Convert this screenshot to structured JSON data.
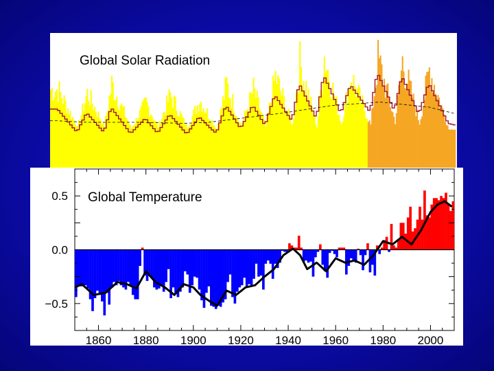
{
  "colors": {
    "background": "#0b0b9e",
    "solar_fill": "#ffff00",
    "solar_recent": "#f5a623",
    "solar_line": "#a0152a",
    "temp_negative": "#0000ff",
    "temp_positive": "#ff0000",
    "temp_smooth": "#000000"
  },
  "chart_data": [
    {
      "type": "area",
      "title": "Global Solar Radiation",
      "xlim": [
        1845,
        2011
      ],
      "series": [
        {
          "name": "sunspot cycle peaks (relative)",
          "x": [
            1848,
            1860,
            1870,
            1884,
            1894,
            1906,
            1917,
            1928,
            1937,
            1947,
            1957,
            1968,
            1979,
            1989,
            2000
          ],
          "values": [
            0.55,
            0.5,
            0.62,
            0.38,
            0.48,
            0.42,
            0.62,
            0.55,
            0.72,
            0.9,
            1.0,
            0.72,
            0.95,
            0.92,
            0.82
          ]
        },
        {
          "name": "cycle minima (relative)",
          "x": [
            1856,
            1867,
            1878,
            1889,
            1901,
            1913,
            1923,
            1933,
            1944,
            1954,
            1964,
            1976,
            1986,
            1996,
            2008
          ],
          "values": [
            0.05,
            0.06,
            0.03,
            0.05,
            0.04,
            0.02,
            0.06,
            0.06,
            0.08,
            0.05,
            0.1,
            0.08,
            0.12,
            0.1,
            0.02
          ]
        },
        {
          "name": "long-term trend (relative)",
          "x": [
            1848,
            1860,
            1880,
            1900,
            1910,
            1920,
            1940,
            1960,
            1980,
            2000,
            2010
          ],
          "values": [
            0.15,
            0.12,
            0.12,
            0.1,
            0.12,
            0.18,
            0.3,
            0.45,
            0.52,
            0.42,
            0.3
          ]
        }
      ]
    },
    {
      "type": "bar",
      "title": "Global Temperature",
      "xlabel": "",
      "ylabel": "",
      "xlim": [
        1850,
        2010
      ],
      "ylim": [
        -0.75,
        0.75
      ],
      "y_ticks": [
        "0.5",
        "0.0",
        "−0.5"
      ],
      "y_tick_values": [
        0.5,
        0.0,
        -0.5
      ],
      "x_ticks": [
        "1860",
        "1880",
        "1900",
        "1920",
        "1940",
        "1960",
        "1980",
        "2000"
      ],
      "x_tick_values": [
        1860,
        1880,
        1900,
        1920,
        1940,
        1960,
        1980,
        2000
      ],
      "smoothed": {
        "x": [
          1850,
          1853,
          1858,
          1863,
          1868,
          1872,
          1876,
          1880,
          1884,
          1888,
          1892,
          1896,
          1900,
          1903,
          1907,
          1910,
          1914,
          1918,
          1922,
          1926,
          1930,
          1934,
          1938,
          1942,
          1945,
          1948,
          1952,
          1956,
          1960,
          1964,
          1968,
          1972,
          1976,
          1980,
          1984,
          1988,
          1992,
          1996,
          2000,
          2003,
          2006,
          2009
        ],
        "values": [
          -0.35,
          -0.32,
          -0.42,
          -0.4,
          -0.3,
          -0.32,
          -0.36,
          -0.2,
          -0.3,
          -0.35,
          -0.42,
          -0.32,
          -0.35,
          -0.42,
          -0.48,
          -0.52,
          -0.38,
          -0.42,
          -0.35,
          -0.33,
          -0.25,
          -0.18,
          -0.05,
          0.01,
          -0.05,
          -0.18,
          -0.12,
          -0.2,
          -0.08,
          -0.12,
          -0.1,
          -0.14,
          -0.05,
          0.08,
          0.05,
          0.12,
          0.05,
          0.18,
          0.35,
          0.42,
          0.45,
          0.4
        ]
      },
      "annual": {
        "x": [
          1850,
          1851,
          1852,
          1853,
          1854,
          1855,
          1856,
          1857,
          1858,
          1859,
          1860,
          1861,
          1862,
          1863,
          1864,
          1865,
          1866,
          1867,
          1868,
          1869,
          1870,
          1871,
          1872,
          1873,
          1874,
          1875,
          1876,
          1877,
          1878,
          1879,
          1880,
          1881,
          1882,
          1883,
          1884,
          1885,
          1886,
          1887,
          1888,
          1889,
          1890,
          1891,
          1892,
          1893,
          1894,
          1895,
          1896,
          1897,
          1898,
          1899,
          1900,
          1901,
          1902,
          1903,
          1904,
          1905,
          1906,
          1907,
          1908,
          1909,
          1910,
          1911,
          1912,
          1913,
          1914,
          1915,
          1916,
          1917,
          1918,
          1919,
          1920,
          1921,
          1922,
          1923,
          1924,
          1925,
          1926,
          1927,
          1928,
          1929,
          1930,
          1931,
          1932,
          1933,
          1934,
          1935,
          1936,
          1937,
          1938,
          1939,
          1940,
          1941,
          1942,
          1943,
          1944,
          1945,
          1946,
          1947,
          1948,
          1949,
          1950,
          1951,
          1952,
          1953,
          1954,
          1955,
          1956,
          1957,
          1958,
          1959,
          1960,
          1961,
          1962,
          1963,
          1964,
          1965,
          1966,
          1967,
          1968,
          1969,
          1970,
          1971,
          1972,
          1973,
          1974,
          1975,
          1976,
          1977,
          1978,
          1979,
          1980,
          1981,
          1982,
          1983,
          1984,
          1985,
          1986,
          1987,
          1988,
          1989,
          1990,
          1991,
          1992,
          1993,
          1994,
          1995,
          1996,
          1997,
          1998,
          1999,
          2000,
          2001,
          2002,
          2003,
          2004,
          2005,
          2006,
          2007,
          2008,
          2009
        ],
        "values": [
          -0.44,
          -0.33,
          -0.34,
          -0.34,
          -0.33,
          -0.36,
          -0.46,
          -0.57,
          -0.45,
          -0.38,
          -0.42,
          -0.48,
          -0.61,
          -0.4,
          -0.51,
          -0.35,
          -0.3,
          -0.33,
          -0.29,
          -0.33,
          -0.35,
          -0.37,
          -0.3,
          -0.34,
          -0.42,
          -0.46,
          -0.46,
          -0.15,
          0.02,
          -0.24,
          -0.29,
          -0.24,
          -0.26,
          -0.35,
          -0.37,
          -0.36,
          -0.33,
          -0.39,
          -0.3,
          -0.18,
          -0.45,
          -0.35,
          -0.41,
          -0.44,
          -0.39,
          -0.35,
          -0.2,
          -0.23,
          -0.4,
          -0.33,
          -0.25,
          -0.26,
          -0.37,
          -0.47,
          -0.54,
          -0.4,
          -0.34,
          -0.52,
          -0.53,
          -0.55,
          -0.52,
          -0.53,
          -0.49,
          -0.46,
          -0.3,
          -0.23,
          -0.44,
          -0.5,
          -0.39,
          -0.35,
          -0.33,
          -0.26,
          -0.34,
          -0.32,
          -0.33,
          -0.27,
          -0.13,
          -0.25,
          -0.24,
          -0.37,
          -0.13,
          -0.1,
          -0.13,
          -0.27,
          -0.13,
          -0.17,
          -0.12,
          -0.01,
          -0.02,
          -0.02,
          0.06,
          0.04,
          0.02,
          0.02,
          0.13,
          0.02,
          -0.11,
          -0.1,
          -0.12,
          -0.11,
          -0.25,
          -0.07,
          -0.02,
          0.05,
          -0.14,
          -0.2,
          -0.26,
          -0.03,
          -0.01,
          -0.04,
          -0.07,
          0.02,
          0.02,
          0.02,
          -0.23,
          -0.15,
          -0.08,
          -0.1,
          -0.12,
          0.01,
          -0.05,
          -0.19,
          -0.05,
          0.06,
          -0.21,
          -0.14,
          -0.24,
          0.04,
          -0.04,
          0.02,
          0.09,
          0.12,
          -0.02,
          0.24,
          0.04,
          0.02,
          0.09,
          0.25,
          0.25,
          0.15,
          0.3,
          0.4,
          0.17,
          0.2,
          0.28,
          0.4,
          0.28,
          0.55,
          0.32,
          0.3,
          0.42,
          0.48,
          0.48,
          0.46,
          0.5,
          0.48,
          0.53,
          0.43,
          0.36,
          0.45
        ]
      }
    }
  ]
}
